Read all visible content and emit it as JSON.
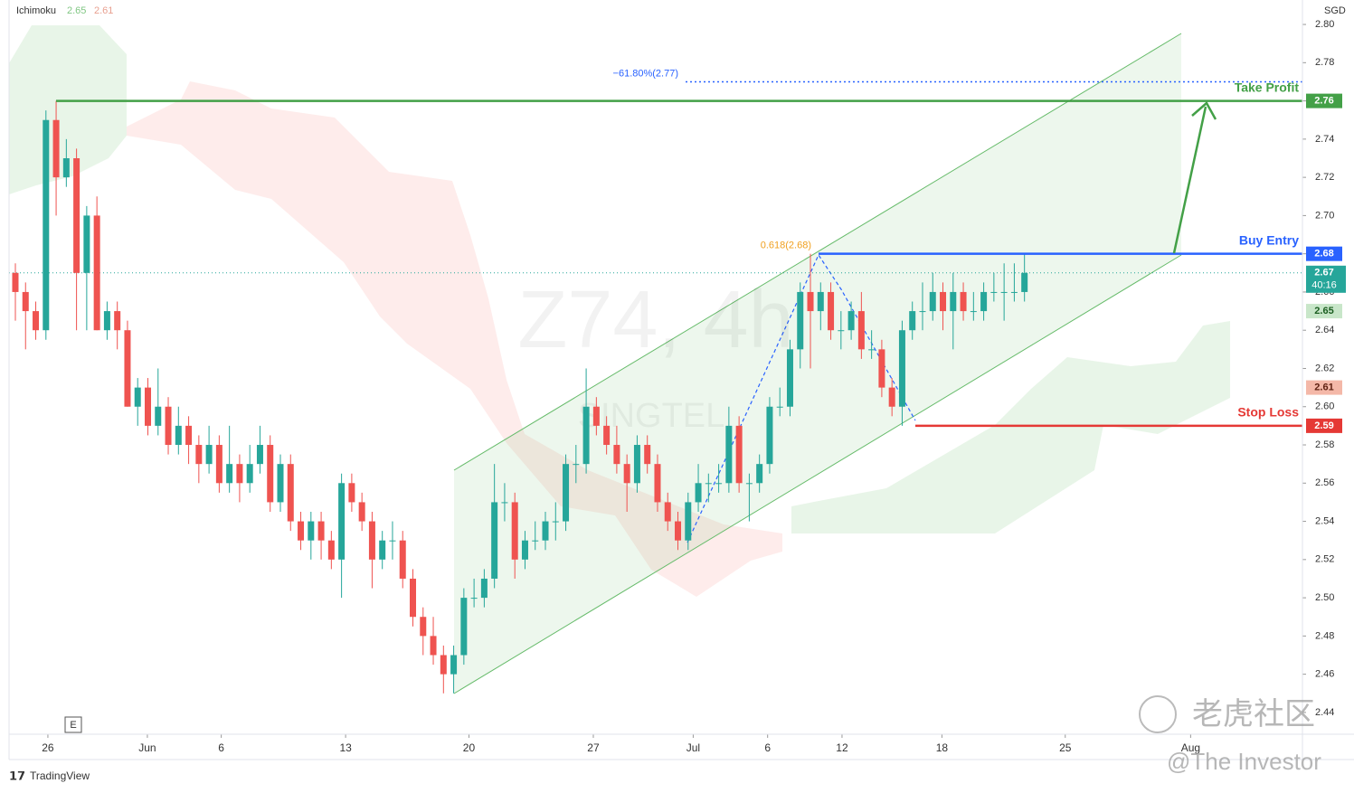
{
  "chart_data": {
    "type": "candlestick",
    "indicator": {
      "name": "Ichimoku",
      "values": [
        2.65,
        2.61
      ],
      "colors": [
        "#81c784",
        "#e8a090"
      ]
    },
    "currency": "SGD",
    "watermark": {
      "symbol": "Z74, 4h",
      "name": "SINGTEL"
    },
    "series": [
      {
        "name": "Z74",
        "up_color": "#26a69a",
        "down_color": "#ef5350",
        "ohlc": [
          [
            2.67,
            2.675,
            2.645,
            2.66
          ],
          [
            2.66,
            2.665,
            2.63,
            2.65
          ],
          [
            2.65,
            2.655,
            2.635,
            2.64
          ],
          [
            2.64,
            2.755,
            2.635,
            2.75
          ],
          [
            2.75,
            2.76,
            2.7,
            2.72
          ],
          [
            2.72,
            2.74,
            2.715,
            2.73
          ],
          [
            2.73,
            2.735,
            2.64,
            2.67
          ],
          [
            2.67,
            2.705,
            2.64,
            2.7
          ],
          [
            2.7,
            2.71,
            2.64,
            2.64
          ],
          [
            2.64,
            2.655,
            2.635,
            2.65
          ],
          [
            2.65,
            2.655,
            2.63,
            2.64
          ],
          [
            2.64,
            2.645,
            2.6,
            2.6
          ],
          [
            2.6,
            2.615,
            2.59,
            2.61
          ],
          [
            2.61,
            2.615,
            2.585,
            2.59
          ],
          [
            2.59,
            2.62,
            2.585,
            2.6
          ],
          [
            2.6,
            2.605,
            2.575,
            2.58
          ],
          [
            2.58,
            2.6,
            2.575,
            2.59
          ],
          [
            2.59,
            2.595,
            2.57,
            2.58
          ],
          [
            2.58,
            2.585,
            2.56,
            2.57
          ],
          [
            2.57,
            2.59,
            2.565,
            2.58
          ],
          [
            2.58,
            2.585,
            2.555,
            2.56
          ],
          [
            2.56,
            2.59,
            2.555,
            2.57
          ],
          [
            2.57,
            2.575,
            2.55,
            2.56
          ],
          [
            2.56,
            2.58,
            2.555,
            2.57
          ],
          [
            2.57,
            2.59,
            2.565,
            2.58
          ],
          [
            2.58,
            2.585,
            2.545,
            2.55
          ],
          [
            2.55,
            2.575,
            2.545,
            2.57
          ],
          [
            2.57,
            2.575,
            2.535,
            2.54
          ],
          [
            2.54,
            2.545,
            2.525,
            2.53
          ],
          [
            2.53,
            2.545,
            2.52,
            2.54
          ],
          [
            2.54,
            2.545,
            2.52,
            2.53
          ],
          [
            2.53,
            2.535,
            2.515,
            2.52
          ],
          [
            2.52,
            2.565,
            2.5,
            2.56
          ],
          [
            2.56,
            2.565,
            2.545,
            2.55
          ],
          [
            2.55,
            2.555,
            2.535,
            2.54
          ],
          [
            2.54,
            2.545,
            2.505,
            2.52
          ],
          [
            2.52,
            2.535,
            2.515,
            2.53
          ],
          [
            2.53,
            2.54,
            2.52,
            2.53
          ],
          [
            2.53,
            2.535,
            2.505,
            2.51
          ],
          [
            2.51,
            2.515,
            2.485,
            2.49
          ],
          [
            2.49,
            2.495,
            2.47,
            2.48
          ],
          [
            2.48,
            2.49,
            2.465,
            2.47
          ],
          [
            2.47,
            2.475,
            2.45,
            2.46
          ],
          [
            2.46,
            2.475,
            2.45,
            2.47
          ],
          [
            2.47,
            2.505,
            2.465,
            2.5
          ],
          [
            2.5,
            2.51,
            2.495,
            2.5
          ],
          [
            2.5,
            2.515,
            2.495,
            2.51
          ],
          [
            2.51,
            2.57,
            2.505,
            2.55
          ],
          [
            2.55,
            2.56,
            2.54,
            2.55
          ],
          [
            2.55,
            2.555,
            2.51,
            2.52
          ],
          [
            2.52,
            2.535,
            2.515,
            2.53
          ],
          [
            2.53,
            2.54,
            2.525,
            2.53
          ],
          [
            2.53,
            2.545,
            2.525,
            2.54
          ],
          [
            2.54,
            2.55,
            2.53,
            2.54
          ],
          [
            2.54,
            2.575,
            2.535,
            2.57
          ],
          [
            2.57,
            2.58,
            2.56,
            2.57
          ],
          [
            2.57,
            2.62,
            2.565,
            2.6
          ],
          [
            2.6,
            2.605,
            2.585,
            2.59
          ],
          [
            2.59,
            2.595,
            2.575,
            2.58
          ],
          [
            2.58,
            2.59,
            2.565,
            2.57
          ],
          [
            2.57,
            2.575,
            2.545,
            2.56
          ],
          [
            2.56,
            2.585,
            2.555,
            2.58
          ],
          [
            2.58,
            2.585,
            2.565,
            2.57
          ],
          [
            2.57,
            2.575,
            2.545,
            2.55
          ],
          [
            2.55,
            2.555,
            2.535,
            2.54
          ],
          [
            2.54,
            2.545,
            2.525,
            2.53
          ],
          [
            2.53,
            2.555,
            2.525,
            2.55
          ],
          [
            2.55,
            2.57,
            2.545,
            2.56
          ],
          [
            2.56,
            2.565,
            2.55,
            2.56
          ],
          [
            2.56,
            2.57,
            2.555,
            2.56
          ],
          [
            2.56,
            2.6,
            2.555,
            2.59
          ],
          [
            2.59,
            2.595,
            2.555,
            2.56
          ],
          [
            2.56,
            2.565,
            2.54,
            2.56
          ],
          [
            2.56,
            2.575,
            2.555,
            2.57
          ],
          [
            2.57,
            2.605,
            2.565,
            2.6
          ],
          [
            2.6,
            2.61,
            2.595,
            2.6
          ],
          [
            2.6,
            2.635,
            2.595,
            2.63
          ],
          [
            2.63,
            2.665,
            2.62,
            2.66
          ],
          [
            2.66,
            2.68,
            2.62,
            2.65
          ],
          [
            2.65,
            2.665,
            2.64,
            2.66
          ],
          [
            2.66,
            2.665,
            2.635,
            2.64
          ],
          [
            2.64,
            2.65,
            2.63,
            2.64
          ],
          [
            2.64,
            2.655,
            2.635,
            2.65
          ],
          [
            2.65,
            2.66,
            2.625,
            2.63
          ],
          [
            2.63,
            2.64,
            2.625,
            2.63
          ],
          [
            2.63,
            2.635,
            2.605,
            2.61
          ],
          [
            2.61,
            2.615,
            2.595,
            2.6
          ],
          [
            2.6,
            2.645,
            2.59,
            2.64
          ],
          [
            2.64,
            2.655,
            2.635,
            2.65
          ],
          [
            2.65,
            2.665,
            2.64,
            2.65
          ],
          [
            2.65,
            2.67,
            2.645,
            2.66
          ],
          [
            2.66,
            2.665,
            2.64,
            2.65
          ],
          [
            2.65,
            2.67,
            2.63,
            2.66
          ],
          [
            2.66,
            2.665,
            2.645,
            2.65
          ],
          [
            2.65,
            2.66,
            2.645,
            2.65
          ],
          [
            2.65,
            2.665,
            2.645,
            2.66
          ],
          [
            2.66,
            2.67,
            2.655,
            2.66
          ],
          [
            2.66,
            2.675,
            2.645,
            2.66
          ],
          [
            2.66,
            2.675,
            2.655,
            2.66
          ],
          [
            2.66,
            2.68,
            2.655,
            2.67
          ]
        ]
      }
    ],
    "last_price": 2.67,
    "countdown": "40:16",
    "levels": [
      {
        "label": "Take Profit",
        "value": 2.76,
        "color": "#43a047"
      },
      {
        "label": "Buy Entry",
        "value": 2.68,
        "color": "#2962ff"
      },
      {
        "label": "Stop Loss",
        "value": 2.59,
        "color": "#e53935"
      }
    ],
    "fib": [
      {
        "label": "0.618(2.68)",
        "value": 2.68,
        "color": "#f0a020"
      },
      {
        "label": "−61.80%(2.77)",
        "value": 2.77,
        "color": "#2962ff"
      }
    ],
    "ylim": [
      2.4286,
      2.8128
    ],
    "yticks": [
      {
        "value": 2.8,
        "label": "2.80"
      },
      2.78,
      2.76,
      2.74,
      2.72,
      {
        "value": 2.7,
        "label": "2.70"
      },
      2.68,
      2.66,
      2.64,
      2.62,
      {
        "value": 2.6,
        "label": "2.60"
      },
      2.58,
      2.56,
      2.54,
      2.52,
      {
        "value": 2.5,
        "label": "2.50"
      },
      2.48,
      2.46,
      2.44
    ],
    "xlim": [
      -0.62,
      126.27
    ],
    "xticks": [
      {
        "value": 3.19,
        "label": "26"
      },
      {
        "value": 12.95,
        "label": "Jun"
      },
      {
        "value": 20.2,
        "label": "6"
      },
      {
        "value": 32.4,
        "label": "13"
      },
      {
        "value": 44.5,
        "label": "20"
      },
      {
        "value": 56.7,
        "label": "27"
      },
      {
        "value": 66.5,
        "label": "Jul"
      },
      {
        "value": 73.8,
        "label": "6"
      },
      {
        "value": 81.1,
        "label": "12"
      },
      {
        "value": 90.9,
        "label": "18"
      },
      {
        "value": 103.0,
        "label": "25"
      },
      {
        "value": 115.3,
        "label": "Aug"
      }
    ],
    "footer": {
      "brand": "TradingView",
      "event_marker": "E",
      "community": "老虎社区",
      "author": "@The Investor"
    }
  }
}
